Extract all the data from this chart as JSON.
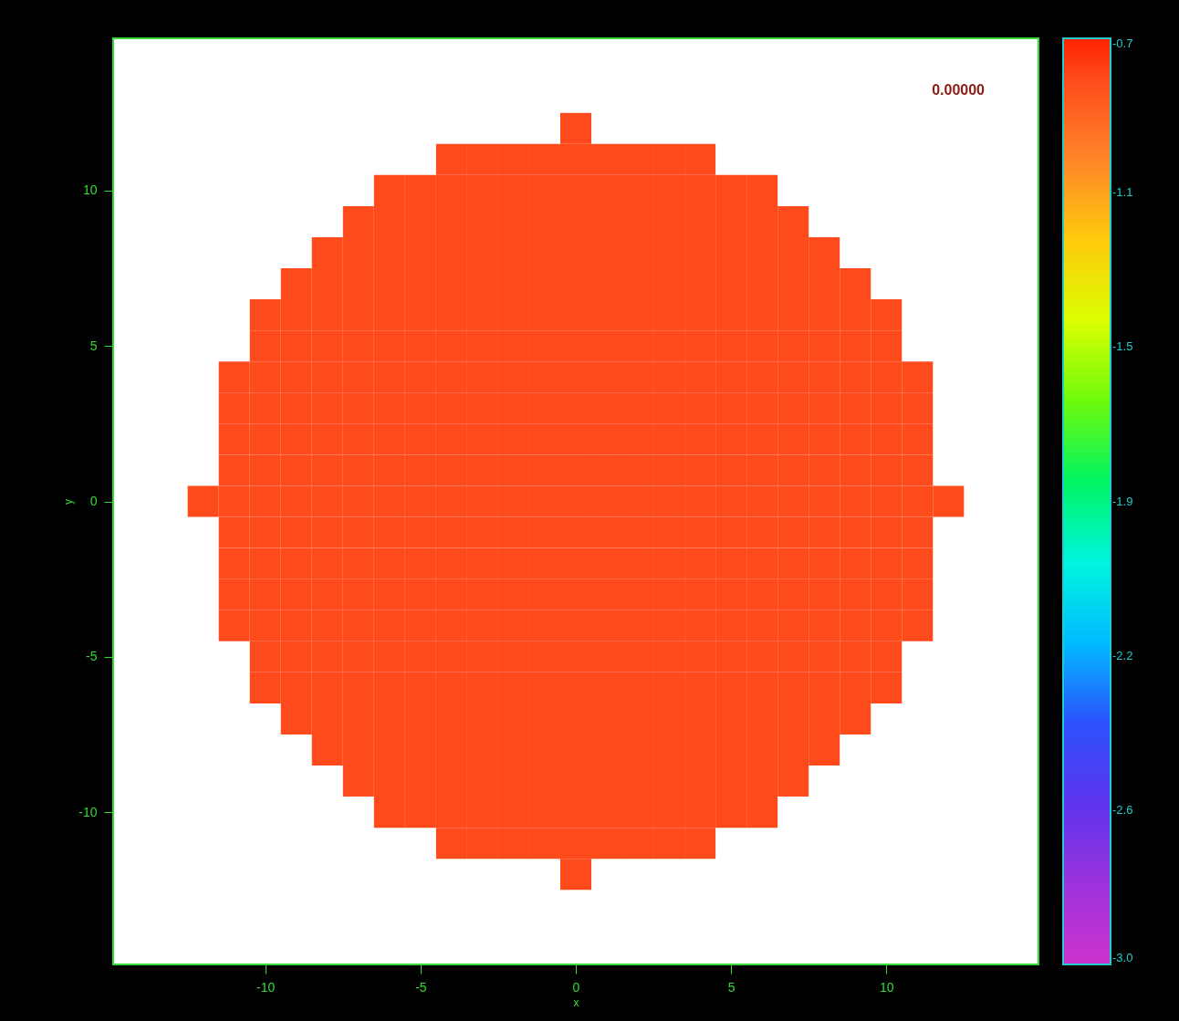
{
  "chart_data": {
    "type": "heatmap",
    "xlabel": "x",
    "ylabel": "y",
    "annotations": [
      "0.00000"
    ],
    "x": [
      -12,
      -11,
      -10,
      -9,
      -8,
      -7,
      -6,
      -5,
      -4,
      -3,
      -2,
      -1,
      0,
      1,
      2,
      3,
      4,
      5,
      6,
      7,
      8,
      9,
      10,
      11,
      12
    ],
    "y": [
      12,
      11,
      10,
      9,
      8,
      7,
      6,
      5,
      4,
      3,
      2,
      1,
      0,
      -1,
      -2,
      -3,
      -4,
      -5,
      -6,
      -7,
      -8,
      -9,
      -10,
      -11,
      -12
    ],
    "xlim": [
      -14.9,
      14.9
    ],
    "ylim": [
      -14.9,
      14.9
    ],
    "xticks": [
      -10,
      -5,
      0,
      5,
      10
    ],
    "yticks": [
      -10,
      -5,
      0,
      5,
      10
    ],
    "clim": [
      -3.0,
      -0.7
    ],
    "cticks": [
      {
        "value": -3.0,
        "label": "-3.0"
      },
      {
        "value": -2.617,
        "label": "-2.6"
      },
      {
        "value": -2.233,
        "label": "-2.2"
      },
      {
        "value": -1.85,
        "label": "-1.9"
      },
      {
        "value": -1.467,
        "label": "-1.5"
      },
      {
        "value": -1.083,
        "label": "-1.1"
      },
      -0.7
    ],
    "cells": [
      [
        null,
        null,
        null,
        null,
        null,
        null,
        null,
        null,
        null,
        null,
        null,
        null,
        -0.8,
        null,
        null,
        null,
        null,
        null,
        null,
        null,
        null,
        null,
        null,
        null,
        null
      ],
      [
        null,
        null,
        null,
        null,
        null,
        null,
        null,
        null,
        -0.8,
        -0.8,
        -0.8,
        -0.8,
        -0.8,
        -0.8,
        -0.8,
        -0.8,
        -0.8,
        null,
        null,
        null,
        null,
        null,
        null,
        null,
        null
      ],
      [
        null,
        null,
        null,
        null,
        null,
        null,
        -0.8,
        -0.8,
        -0.8,
        -0.8,
        -0.8,
        -0.8,
        -0.8,
        -0.8,
        -0.8,
        -0.8,
        -0.8,
        -0.8,
        -0.8,
        null,
        null,
        null,
        null,
        null,
        null
      ],
      [
        null,
        null,
        null,
        null,
        null,
        -0.8,
        -0.8,
        -0.8,
        -0.8,
        -0.8,
        -0.8,
        -0.8,
        -0.8,
        -0.8,
        -0.8,
        -0.8,
        -0.8,
        -0.8,
        -0.8,
        -0.8,
        null,
        null,
        null,
        null,
        null
      ],
      [
        null,
        null,
        null,
        null,
        -0.8,
        -0.8,
        -0.8,
        -0.8,
        -0.8,
        -0.8,
        -0.8,
        -0.8,
        -0.8,
        -0.8,
        -0.8,
        -0.8,
        -0.8,
        -0.8,
        -0.8,
        -0.8,
        -0.8,
        null,
        null,
        null,
        null
      ],
      [
        null,
        null,
        null,
        -0.8,
        -0.8,
        -0.8,
        -0.8,
        -0.8,
        -0.8,
        -0.8,
        -0.8,
        -0.8,
        -0.8,
        -0.8,
        -0.8,
        -0.8,
        -0.8,
        -0.8,
        -0.8,
        -0.8,
        -0.8,
        -0.8,
        null,
        null,
        null
      ],
      [
        null,
        null,
        -0.8,
        -0.8,
        -0.8,
        -0.8,
        -0.8,
        -0.8,
        -0.8,
        -0.8,
        -0.8,
        -0.8,
        -0.8,
        -0.8,
        -0.8,
        -0.8,
        -0.8,
        -0.8,
        -0.8,
        -0.8,
        -0.8,
        -0.8,
        -0.8,
        null,
        null
      ],
      [
        null,
        null,
        -0.8,
        -0.8,
        -0.8,
        -0.8,
        -0.8,
        -0.8,
        -0.8,
        -0.8,
        -0.8,
        -0.8,
        -0.8,
        -0.8,
        -0.8,
        -0.8,
        -0.8,
        -0.8,
        -0.8,
        -0.8,
        -0.8,
        -0.8,
        -0.8,
        null,
        null
      ],
      [
        null,
        -0.8,
        -0.8,
        -0.8,
        -0.8,
        -0.8,
        -0.8,
        -0.8,
        -0.8,
        -0.8,
        -0.8,
        -0.8,
        -0.8,
        -0.8,
        -0.8,
        -0.8,
        -0.8,
        -0.8,
        -0.8,
        -0.8,
        -0.8,
        -0.8,
        -0.8,
        -0.8,
        null
      ],
      [
        null,
        -0.8,
        -0.8,
        -0.8,
        -0.8,
        -0.8,
        -0.8,
        -0.8,
        -0.8,
        -0.8,
        -0.8,
        -0.8,
        -0.8,
        -0.8,
        -0.8,
        -0.8,
        -0.8,
        -0.8,
        -0.8,
        -0.8,
        -0.8,
        -0.8,
        -0.8,
        -0.8,
        null
      ],
      [
        null,
        -0.8,
        -0.8,
        -0.8,
        -0.8,
        -0.8,
        -0.8,
        -0.8,
        -0.8,
        -0.8,
        -0.8,
        -0.8,
        -0.8,
        -0.8,
        -0.8,
        -0.8,
        -0.8,
        -0.8,
        -0.8,
        -0.8,
        -0.8,
        -0.8,
        -0.8,
        -0.8,
        null
      ],
      [
        null,
        -0.8,
        -0.8,
        -0.8,
        -0.8,
        -0.8,
        -0.8,
        -0.8,
        -0.8,
        -0.8,
        -0.8,
        -0.8,
        -0.8,
        -0.8,
        -0.8,
        -0.8,
        -0.8,
        -0.8,
        -0.8,
        -0.8,
        -0.8,
        -0.8,
        -0.8,
        -0.8,
        null
      ],
      [
        -0.8,
        -0.8,
        -0.8,
        -0.8,
        -0.8,
        -0.8,
        -0.8,
        -0.8,
        -0.8,
        -0.8,
        -0.8,
        -0.8,
        -0.8,
        -0.8,
        -0.8,
        -0.8,
        -0.8,
        -0.8,
        -0.8,
        -0.8,
        -0.8,
        -0.8,
        -0.8,
        -0.8,
        -0.8
      ],
      [
        null,
        -0.8,
        -0.8,
        -0.8,
        -0.8,
        -0.8,
        -0.8,
        -0.8,
        -0.8,
        -0.8,
        -0.8,
        -0.8,
        -0.8,
        -0.8,
        -0.8,
        -0.8,
        -0.8,
        -0.8,
        -0.8,
        -0.8,
        -0.8,
        -0.8,
        -0.8,
        -0.8,
        null
      ],
      [
        null,
        -0.8,
        -0.8,
        -0.8,
        -0.8,
        -0.8,
        -0.8,
        -0.8,
        -0.8,
        -0.8,
        -0.8,
        -0.8,
        -0.8,
        -0.8,
        -0.8,
        -0.8,
        -0.8,
        -0.8,
        -0.8,
        -0.8,
        -0.8,
        -0.8,
        -0.8,
        -0.8,
        null
      ],
      [
        null,
        -0.8,
        -0.8,
        -0.8,
        -0.8,
        -0.8,
        -0.8,
        -0.8,
        -0.8,
        -0.8,
        -0.8,
        -0.8,
        -0.8,
        -0.8,
        -0.8,
        -0.8,
        -0.8,
        -0.8,
        -0.8,
        -0.8,
        -0.8,
        -0.8,
        -0.8,
        -0.8,
        null
      ],
      [
        null,
        -0.8,
        -0.8,
        -0.8,
        -0.8,
        -0.8,
        -0.8,
        -0.8,
        -0.8,
        -0.8,
        -0.8,
        -0.8,
        -0.8,
        -0.8,
        -0.8,
        -0.8,
        -0.8,
        -0.8,
        -0.8,
        -0.8,
        -0.8,
        -0.8,
        -0.8,
        -0.8,
        null
      ],
      [
        null,
        null,
        -0.8,
        -0.8,
        -0.8,
        -0.8,
        -0.8,
        -0.8,
        -0.8,
        -0.8,
        -0.8,
        -0.8,
        -0.8,
        -0.8,
        -0.8,
        -0.8,
        -0.8,
        -0.8,
        -0.8,
        -0.8,
        -0.8,
        -0.8,
        -0.8,
        null,
        null
      ],
      [
        null,
        null,
        -0.8,
        -0.8,
        -0.8,
        -0.8,
        -0.8,
        -0.8,
        -0.8,
        -0.8,
        -0.8,
        -0.8,
        -0.8,
        -0.8,
        -0.8,
        -0.8,
        -0.8,
        -0.8,
        -0.8,
        -0.8,
        -0.8,
        -0.8,
        -0.8,
        null,
        null
      ],
      [
        null,
        null,
        null,
        -0.8,
        -0.8,
        -0.8,
        -0.8,
        -0.8,
        -0.8,
        -0.8,
        -0.8,
        -0.8,
        -0.8,
        -0.8,
        -0.8,
        -0.8,
        -0.8,
        -0.8,
        -0.8,
        -0.8,
        -0.8,
        -0.8,
        null,
        null,
        null
      ],
      [
        null,
        null,
        null,
        null,
        -0.8,
        -0.8,
        -0.8,
        -0.8,
        -0.8,
        -0.8,
        -0.8,
        -0.8,
        -0.8,
        -0.8,
        -0.8,
        -0.8,
        -0.8,
        -0.8,
        -0.8,
        -0.8,
        -0.8,
        null,
        null,
        null,
        null
      ],
      [
        null,
        null,
        null,
        null,
        null,
        -0.8,
        -0.8,
        -0.8,
        -0.8,
        -0.8,
        -0.8,
        -0.8,
        -0.8,
        -0.8,
        -0.8,
        -0.8,
        -0.8,
        -0.8,
        -0.8,
        -0.8,
        null,
        null,
        null,
        null,
        null
      ],
      [
        null,
        null,
        null,
        null,
        null,
        null,
        -0.8,
        -0.8,
        -0.8,
        -0.8,
        -0.8,
        -0.8,
        -0.8,
        -0.8,
        -0.8,
        -0.8,
        -0.8,
        -0.8,
        -0.8,
        null,
        null,
        null,
        null,
        null,
        null
      ],
      [
        null,
        null,
        null,
        null,
        null,
        null,
        null,
        null,
        -0.8,
        -0.8,
        -0.8,
        -0.8,
        -0.8,
        -0.8,
        -0.8,
        -0.8,
        -0.8,
        null,
        null,
        null,
        null,
        null,
        null,
        null,
        null
      ],
      [
        null,
        null,
        null,
        null,
        null,
        null,
        null,
        null,
        null,
        null,
        null,
        null,
        -0.8,
        null,
        null,
        null,
        null,
        null,
        null,
        null,
        null,
        null,
        null,
        null,
        null
      ]
    ]
  }
}
